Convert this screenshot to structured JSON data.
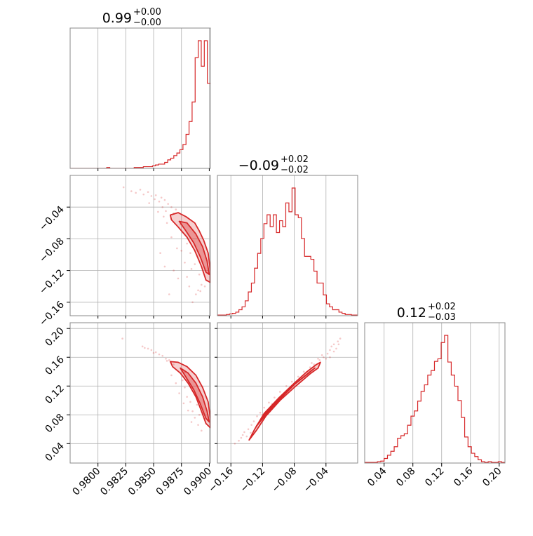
{
  "chart_data": {
    "type": "corner",
    "color": "#d62728",
    "parameters": [
      {
        "id": "p0",
        "range": [
          0.9775,
          0.9901
        ],
        "ticks": [
          0.98,
          0.9825,
          0.985,
          0.9875,
          0.99
        ],
        "tick_labels": [
          "0.9800",
          "0.9825",
          "0.9850",
          "0.9875",
          "0.9900"
        ]
      },
      {
        "id": "p1",
        "range": [
          -0.177,
          -0.0
        ],
        "ticks": [
          -0.16,
          -0.12,
          -0.08,
          -0.04
        ],
        "tick_labels": [
          "−0.16",
          "−0.12",
          "−0.08",
          "−0.04"
        ]
      },
      {
        "id": "p2",
        "range": [
          0.013,
          0.208
        ],
        "ticks": [
          0.04,
          0.08,
          0.12,
          0.16,
          0.2
        ],
        "tick_labels": [
          "0.04",
          "0.08",
          "0.12",
          "0.16",
          "0.20"
        ]
      }
    ],
    "titles": [
      {
        "main": "0.99",
        "plus": "+0.00",
        "minus": "−0.00"
      },
      {
        "main": "−0.09",
        "plus": "+0.02",
        "minus": "−0.02"
      },
      {
        "main": "0.12",
        "plus": "+0.02",
        "minus": "−0.03"
      }
    ],
    "histograms": [
      {
        "param": 0,
        "bin_start": 0.9775,
        "bin_end": 0.9901,
        "counts": [
          0,
          0,
          0,
          0,
          0,
          0,
          0,
          0,
          0,
          0,
          0,
          0,
          1,
          0,
          0,
          0,
          0,
          0,
          0,
          0,
          0,
          1,
          1,
          1,
          2,
          2,
          2,
          3,
          4,
          5,
          5,
          7,
          10,
          12,
          15,
          18,
          22,
          28,
          40,
          55,
          78,
          130,
          150,
          120,
          150,
          100
        ]
      },
      {
        "param": 1,
        "bin_start": -0.1775,
        "bin_end": -0.0,
        "counts": [
          1,
          1,
          1,
          2,
          3,
          4,
          6,
          10,
          15,
          25,
          40,
          55,
          80,
          105,
          130,
          155,
          170,
          150,
          170,
          140,
          160,
          150,
          190,
          175,
          215,
          170,
          165,
          130,
          100,
          100,
          95,
          75,
          55,
          55,
          35,
          20,
          15,
          10,
          10,
          6,
          4,
          2,
          2,
          1,
          1
        ]
      },
      {
        "param": 2,
        "bin_start": 0.012,
        "bin_end": 0.208,
        "counts": [
          1,
          1,
          1,
          1,
          2,
          3,
          7,
          12,
          18,
          25,
          38,
          42,
          45,
          58,
          72,
          80,
          95,
          110,
          120,
          135,
          142,
          156,
          160,
          185,
          196,
          155,
          135,
          118,
          96,
          70,
          40,
          25,
          15,
          10,
          5,
          2,
          1,
          2,
          1,
          1,
          2,
          1
        ]
      }
    ],
    "pairs": [
      {
        "x_param": 0,
        "y_param": 1,
        "contour_outer": [
          [
            0.9865,
            -0.05
          ],
          [
            0.9872,
            -0.047
          ],
          [
            0.9879,
            -0.052
          ],
          [
            0.9887,
            -0.06
          ],
          [
            0.9891,
            -0.07
          ],
          [
            0.9895,
            -0.082
          ],
          [
            0.9899,
            -0.098
          ],
          [
            0.9901,
            -0.12
          ],
          [
            0.9901,
            -0.135
          ],
          [
            0.9897,
            -0.132
          ],
          [
            0.9893,
            -0.115
          ],
          [
            0.9887,
            -0.095
          ],
          [
            0.988,
            -0.078
          ],
          [
            0.9872,
            -0.065
          ],
          [
            0.9866,
            -0.056
          ]
        ],
        "contour_inner": [
          [
            0.9873,
            -0.058
          ],
          [
            0.988,
            -0.06
          ],
          [
            0.9888,
            -0.074
          ],
          [
            0.9894,
            -0.09
          ],
          [
            0.9898,
            -0.108
          ],
          [
            0.99,
            -0.125
          ],
          [
            0.9897,
            -0.122
          ],
          [
            0.9892,
            -0.103
          ],
          [
            0.9886,
            -0.085
          ],
          [
            0.9879,
            -0.07
          ]
        ],
        "points": [
          [
            0.9838,
            -0.018
          ],
          [
            0.9845,
            -0.021
          ],
          [
            0.9852,
            -0.025
          ],
          [
            0.9857,
            -0.028
          ],
          [
            0.986,
            -0.031
          ],
          [
            0.9855,
            -0.033
          ],
          [
            0.9863,
            -0.036
          ],
          [
            0.9848,
            -0.026
          ],
          [
            0.9841,
            -0.024
          ],
          [
            0.9866,
            -0.04
          ],
          [
            0.987,
            -0.043
          ],
          [
            0.9861,
            -0.045
          ],
          [
            0.9868,
            -0.048
          ],
          [
            0.9858,
            -0.04
          ],
          [
            0.9851,
            -0.03
          ],
          [
            0.9874,
            -0.062
          ],
          [
            0.9876,
            -0.072
          ],
          [
            0.988,
            -0.086
          ],
          [
            0.9883,
            -0.098
          ],
          [
            0.9887,
            -0.112
          ],
          [
            0.9891,
            -0.125
          ],
          [
            0.9878,
            -0.11
          ],
          [
            0.9872,
            -0.13
          ],
          [
            0.9868,
            -0.12
          ],
          [
            0.9864,
            -0.15
          ],
          [
            0.9882,
            -0.14
          ],
          [
            0.9888,
            -0.15
          ],
          [
            0.986,
            -0.115
          ],
          [
            0.9875,
            -0.095
          ],
          [
            0.9856,
            -0.098
          ],
          [
            0.9885,
            -0.16
          ],
          [
            0.989,
            -0.145
          ],
          [
            0.9823,
            -0.015
          ],
          [
            0.983,
            -0.02
          ],
          [
            0.9834,
            -0.022
          ],
          [
            0.9846,
            -0.035
          ],
          [
            0.9859,
            -0.052
          ],
          [
            0.9862,
            -0.06
          ],
          [
            0.9854,
            -0.046
          ],
          [
            0.9866,
            -0.078
          ],
          [
            0.9871,
            -0.092
          ],
          [
            0.988,
            -0.128
          ],
          [
            0.9893,
            -0.138
          ],
          [
            0.9896,
            -0.14
          ],
          [
            0.9884,
            -0.118
          ],
          [
            0.9892,
            -0.146
          ]
        ]
      },
      {
        "x_param": 0,
        "y_param": 2,
        "contour_outer": [
          [
            0.9865,
            0.154
          ],
          [
            0.9872,
            0.153
          ],
          [
            0.988,
            0.147
          ],
          [
            0.9888,
            0.135
          ],
          [
            0.9894,
            0.118
          ],
          [
            0.9899,
            0.098
          ],
          [
            0.9901,
            0.075
          ],
          [
            0.9901,
            0.062
          ],
          [
            0.9897,
            0.068
          ],
          [
            0.9893,
            0.085
          ],
          [
            0.9888,
            0.105
          ],
          [
            0.9881,
            0.124
          ],
          [
            0.9874,
            0.138
          ],
          [
            0.9867,
            0.147
          ]
        ],
        "contour_inner": [
          [
            0.9874,
            0.145
          ],
          [
            0.9881,
            0.138
          ],
          [
            0.9888,
            0.124
          ],
          [
            0.9894,
            0.105
          ],
          [
            0.9898,
            0.085
          ],
          [
            0.99,
            0.07
          ],
          [
            0.9897,
            0.075
          ],
          [
            0.9892,
            0.095
          ],
          [
            0.9886,
            0.115
          ],
          [
            0.988,
            0.13
          ]
        ],
        "points": [
          [
            0.9822,
            0.186
          ],
          [
            0.984,
            0.175
          ],
          [
            0.9845,
            0.172
          ],
          [
            0.9848,
            0.17
          ],
          [
            0.9852,
            0.167
          ],
          [
            0.9855,
            0.164
          ],
          [
            0.9858,
            0.162
          ],
          [
            0.9861,
            0.158
          ],
          [
            0.9864,
            0.156
          ],
          [
            0.985,
            0.166
          ],
          [
            0.9842,
            0.173
          ],
          [
            0.9868,
            0.15
          ],
          [
            0.9876,
            0.128
          ],
          [
            0.9878,
            0.118
          ],
          [
            0.988,
            0.105
          ],
          [
            0.9883,
            0.098
          ],
          [
            0.9885,
            0.085
          ],
          [
            0.9887,
            0.076
          ],
          [
            0.989,
            0.066
          ],
          [
            0.9893,
            0.058
          ],
          [
            0.9873,
            0.11
          ],
          [
            0.9877,
            0.096
          ],
          [
            0.9881,
            0.086
          ],
          [
            0.9884,
            0.07
          ],
          [
            0.987,
            0.124
          ],
          [
            0.9866,
            0.135
          ],
          [
            0.9889,
            0.094
          ],
          [
            0.9891,
            0.08
          ],
          [
            0.9878,
            0.139
          ],
          [
            0.9862,
            0.155
          ]
        ]
      },
      {
        "x_param": 1,
        "y_param": 2,
        "contour_outer": [
          [
            -0.137,
            0.045
          ],
          [
            -0.13,
            0.06
          ],
          [
            -0.118,
            0.082
          ],
          [
            -0.1,
            0.103
          ],
          [
            -0.08,
            0.124
          ],
          [
            -0.065,
            0.139
          ],
          [
            -0.052,
            0.15
          ],
          [
            -0.047,
            0.153
          ],
          [
            -0.05,
            0.145
          ],
          [
            -0.06,
            0.137
          ],
          [
            -0.078,
            0.12
          ],
          [
            -0.098,
            0.1
          ],
          [
            -0.116,
            0.078
          ],
          [
            -0.128,
            0.058
          ]
        ],
        "contour_inner": [
          [
            -0.128,
            0.064
          ],
          [
            -0.115,
            0.084
          ],
          [
            -0.098,
            0.104
          ],
          [
            -0.08,
            0.122
          ],
          [
            -0.064,
            0.136
          ],
          [
            -0.054,
            0.145
          ],
          [
            -0.06,
            0.14
          ],
          [
            -0.078,
            0.124
          ],
          [
            -0.096,
            0.104
          ],
          [
            -0.113,
            0.084
          ]
        ],
        "points": [
          [
            -0.155,
            0.04
          ],
          [
            -0.15,
            0.044
          ],
          [
            -0.147,
            0.048
          ],
          [
            -0.145,
            0.052
          ],
          [
            -0.14,
            0.05
          ],
          [
            -0.143,
            0.056
          ],
          [
            -0.138,
            0.06
          ],
          [
            -0.134,
            0.066
          ],
          [
            -0.131,
            0.071
          ],
          [
            -0.127,
            0.078
          ],
          [
            -0.123,
            0.083
          ],
          [
            -0.118,
            0.09
          ],
          [
            -0.112,
            0.097
          ],
          [
            -0.105,
            0.104
          ],
          [
            -0.098,
            0.112
          ],
          [
            -0.09,
            0.12
          ],
          [
            -0.083,
            0.126
          ],
          [
            -0.075,
            0.133
          ],
          [
            -0.068,
            0.14
          ],
          [
            -0.06,
            0.146
          ],
          [
            -0.055,
            0.15
          ],
          [
            -0.048,
            0.156
          ],
          [
            -0.043,
            0.16
          ],
          [
            -0.038,
            0.165
          ],
          [
            -0.035,
            0.17
          ],
          [
            -0.033,
            0.175
          ],
          [
            -0.03,
            0.178
          ],
          [
            -0.025,
            0.182
          ],
          [
            -0.022,
            0.186
          ],
          [
            -0.03,
            0.168
          ],
          [
            -0.04,
            0.158
          ],
          [
            -0.045,
            0.163
          ],
          [
            -0.05,
            0.158
          ],
          [
            -0.058,
            0.152
          ],
          [
            -0.035,
            0.16
          ],
          [
            -0.027,
            0.172
          ],
          [
            -0.024,
            0.178
          ],
          [
            -0.135,
            0.055
          ],
          [
            -0.12,
            0.08
          ],
          [
            -0.108,
            0.095
          ]
        ]
      }
    ]
  }
}
